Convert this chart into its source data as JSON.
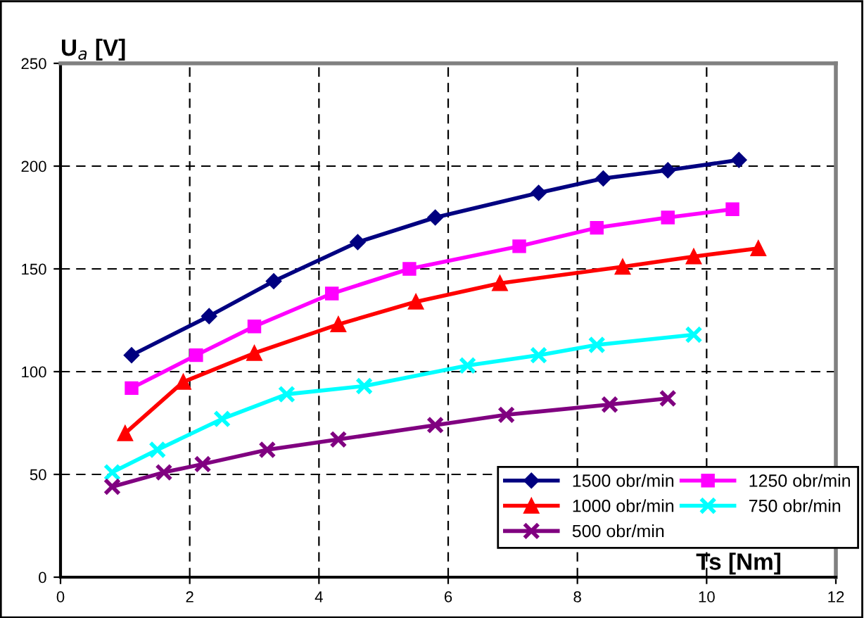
{
  "chart_data": {
    "type": "line",
    "xlabel": "Ts [Nm]",
    "ylabel": "U$_{a}$ [V]",
    "xlim": [
      0,
      12
    ],
    "ylim": [
      0,
      250
    ],
    "xticks": [
      0,
      2,
      4,
      6,
      8,
      10,
      12
    ],
    "yticks": [
      0,
      50,
      100,
      150,
      200,
      250
    ],
    "grid": true,
    "legend": "bottom right",
    "line_style": "solid",
    "series": [
      {
        "name": "1500 obr/min",
        "color": "#000080",
        "marker": "diamond",
        "x": [
          1.1,
          2.3,
          3.3,
          4.6,
          5.8,
          7.4,
          8.4,
          9.4,
          10.5
        ],
        "values": [
          108,
          127,
          144,
          163,
          175,
          187,
          194,
          198,
          203
        ]
      },
      {
        "name": "1250 obr/min",
        "color": "#ff00ff",
        "marker": "square",
        "x": [
          1.1,
          2.1,
          3.0,
          4.2,
          5.4,
          7.1,
          8.3,
          9.4,
          10.4
        ],
        "values": [
          92,
          108,
          122,
          138,
          150,
          161,
          170,
          175,
          179
        ]
      },
      {
        "name": "1000 obr/min",
        "color": "#ff0000",
        "marker": "triangle",
        "x": [
          1.0,
          1.9,
          3.0,
          4.3,
          5.5,
          6.8,
          8.7,
          9.8,
          10.8
        ],
        "values": [
          70,
          95,
          109,
          123,
          134,
          143,
          151,
          156,
          160
        ]
      },
      {
        "name": "750 obr/min",
        "color": "#00ffff",
        "marker": "cross",
        "x": [
          0.8,
          1.5,
          2.5,
          3.5,
          4.7,
          6.3,
          7.4,
          8.3,
          9.8
        ],
        "values": [
          51,
          62,
          77,
          89,
          93,
          103,
          108,
          113,
          118
        ]
      },
      {
        "name": "500 obr/min",
        "color": "#800080",
        "marker": "cross",
        "x": [
          0.8,
          1.6,
          2.2,
          3.2,
          4.3,
          5.8,
          6.9,
          8.5,
          9.4
        ],
        "values": [
          44,
          51,
          55,
          62,
          67,
          74,
          79,
          84,
          87
        ]
      }
    ]
  }
}
